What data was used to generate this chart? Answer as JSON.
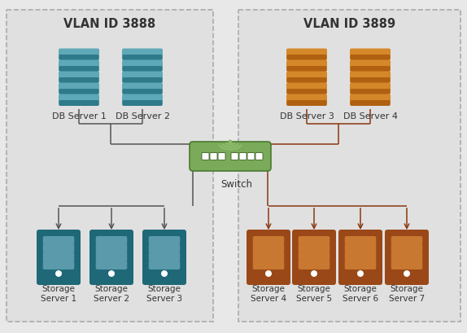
{
  "vlan_left_label": "VLAN ID 3888",
  "vlan_right_label": "VLAN ID 3889",
  "switch_label": "Switch",
  "db_servers_left": [
    "DB Server 1",
    "DB Server 2"
  ],
  "db_servers_right": [
    "DB Server 3",
    "DB Server 4"
  ],
  "storage_servers_left": [
    "Storage\nServer 1",
    "Storage\nServer 2",
    "Storage\nServer 3"
  ],
  "storage_servers_right": [
    "Storage\nServer 4",
    "Storage\nServer 5",
    "Storage\nServer 6",
    "Storage\nServer 7"
  ],
  "bg_color": "#e8e8e8",
  "vlan_box_color": "#e0e0e0",
  "vlan_border_color": "#aaaaaa",
  "db_main_left": "#5fa8b8",
  "db_dark_left": "#2e7a8a",
  "db_main_right": "#d4882a",
  "db_dark_right": "#b06010",
  "storage_main_left": "#1e6878",
  "storage_light_left": "#5a9aaa",
  "storage_main_right": "#9a4818",
  "storage_light_right": "#c87830",
  "switch_body": "#7aaa5a",
  "switch_dark": "#4a7a30",
  "switch_port_color": "#3a6020",
  "arrow_left": "#555555",
  "arrow_right": "#8a3810",
  "line_left": "#555555",
  "line_right": "#8a3810",
  "wifi_color": "#8aba6a",
  "text_color": "#333333",
  "white": "#ffffff"
}
